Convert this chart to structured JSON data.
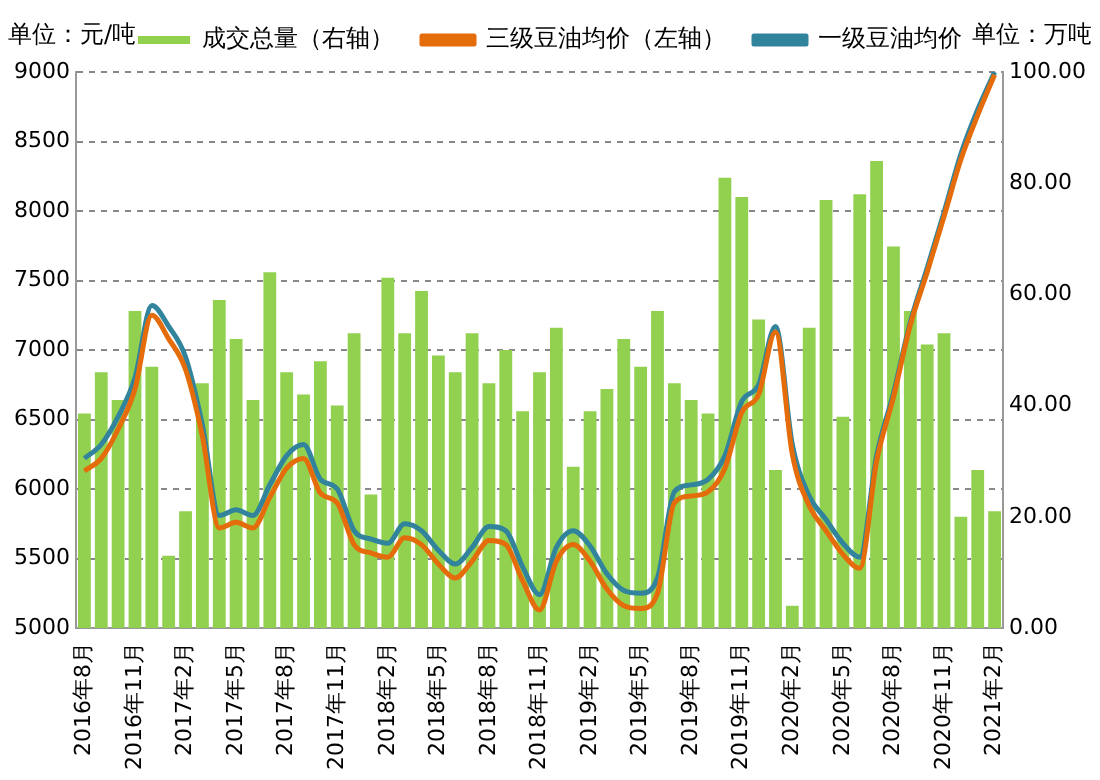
{
  "chart_data": {
    "type": "bar",
    "categories": [
      "2016年8月",
      null,
      null,
      "2016年11月",
      null,
      null,
      "2017年2月",
      null,
      null,
      "2017年5月",
      null,
      null,
      "2017年8月",
      null,
      null,
      "2017年11月",
      null,
      null,
      "2018年2月",
      null,
      null,
      "2018年5月",
      null,
      null,
      "2018年8月",
      null,
      null,
      "2018年11月",
      null,
      null,
      "2019年2月",
      null,
      null,
      "2019年5月",
      null,
      null,
      "2019年8月",
      null,
      null,
      "2019年11月",
      null,
      null,
      "2020年2月",
      null,
      null,
      "2020年5月",
      null,
      null,
      "2020年8月",
      null,
      null,
      "2020年11月",
      null,
      null,
      "2021年2月"
    ],
    "series": [
      {
        "name": "成交总量（右轴）",
        "axis": "y2",
        "color": "#92d050",
        "values": [
          38.6,
          46,
          41,
          57,
          47,
          13,
          21,
          44,
          59,
          52,
          41,
          64,
          46,
          42,
          48,
          40,
          53,
          24,
          63,
          53,
          60.6,
          49,
          46,
          53,
          44,
          50,
          39,
          46,
          54,
          29,
          39,
          43,
          52,
          47,
          57,
          44,
          41,
          38.6,
          81,
          77.5,
          55.5,
          28.4,
          4,
          54,
          77,
          38,
          78,
          84,
          68.6,
          57,
          51,
          53,
          20,
          28.4,
          21
        ]
      },
      {
        "name": "三级豆油均价（左轴）",
        "type": "line",
        "color": "#e46c0a",
        "values": [
          6130,
          6220,
          6430,
          6720,
          7250,
          7080,
          6860,
          6380,
          5720,
          5760,
          5720,
          5940,
          6150,
          6220,
          5970,
          5900,
          5600,
          5540,
          5510,
          5650,
          5600,
          5460,
          5360,
          5480,
          5630,
          5600,
          5340,
          5130,
          5480,
          5600,
          5480,
          5280,
          5160,
          5140,
          5250,
          5900,
          5950,
          5980,
          6150,
          6550,
          6680,
          7130,
          6250,
          5880,
          5700,
          5530,
          5430,
          6200,
          6660,
          7180,
          7560,
          7960,
          8370,
          8690,
          8980
        ]
      },
      {
        "name": "一级豆油均价",
        "type": "line",
        "color": "#31849b",
        "values": [
          6220,
          6320,
          6520,
          6800,
          7320,
          7170,
          6950,
          6460,
          5810,
          5850,
          5810,
          6030,
          6240,
          6320,
          6070,
          6000,
          5700,
          5640,
          5610,
          5750,
          5700,
          5560,
          5460,
          5580,
          5730,
          5700,
          5440,
          5240,
          5580,
          5700,
          5590,
          5390,
          5270,
          5250,
          5360,
          5980,
          6030,
          6070,
          6240,
          6630,
          6750,
          7170,
          6320,
          5950,
          5780,
          5610,
          5510,
          6240,
          6690,
          7200,
          7590,
          7990,
          8410,
          8730,
          9000
        ]
      }
    ],
    "ylabel": "单位：元/吨",
    "y2label": "单位：万吨",
    "ylim": [
      5000,
      9000
    ],
    "yticks": [
      5000,
      5500,
      6000,
      6500,
      7000,
      7500,
      8000,
      8500,
      9000
    ],
    "y2lim": [
      0,
      100
    ],
    "y2ticks": [
      {
        "value": 0,
        "label": "0.00"
      },
      {
        "value": 20,
        "label": "20.00"
      },
      {
        "value": 40,
        "label": "40.00"
      },
      {
        "value": 60,
        "label": "60.00"
      },
      {
        "value": 80,
        "label": "80.00"
      },
      {
        "value": 100,
        "label": "100.00"
      }
    ],
    "grid": "y",
    "legend": "top",
    "marker": "none",
    "line_style": "solid"
  }
}
